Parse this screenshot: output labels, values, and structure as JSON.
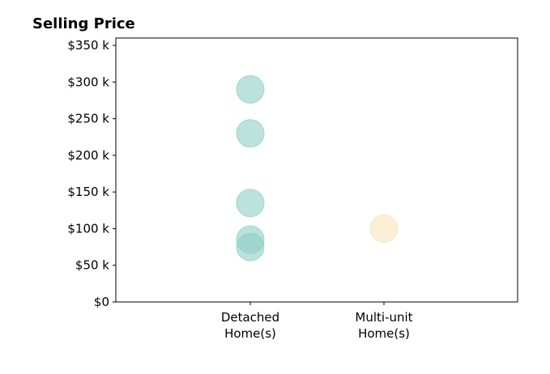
{
  "chart_data": {
    "type": "scatter",
    "title": "Selling Price",
    "xlabel": "",
    "ylabel": "",
    "categories": [
      [
        "Detached",
        "Home(s)"
      ],
      [
        "Multi-unit",
        "Home(s)"
      ]
    ],
    "ylim": [
      0,
      360000
    ],
    "yticks": [
      {
        "value": 0,
        "label": "$0"
      },
      {
        "value": 50000,
        "label": "$50 k"
      },
      {
        "value": 100000,
        "label": "$100 k"
      },
      {
        "value": 150000,
        "label": "$150 k"
      },
      {
        "value": 200000,
        "label": "$200 k"
      },
      {
        "value": 250000,
        "label": "$250 k"
      },
      {
        "value": 300000,
        "label": "$300 k"
      },
      {
        "value": 350000,
        "label": "$350 k"
      }
    ],
    "series": [
      {
        "category_index": 0,
        "color": "#8ecfc6",
        "values": [
          290000,
          230000,
          135000,
          85000,
          75000
        ]
      },
      {
        "category_index": 1,
        "color": "#f7e4b8",
        "values": [
          100000
        ]
      }
    ],
    "grid": false,
    "legend": "none"
  }
}
